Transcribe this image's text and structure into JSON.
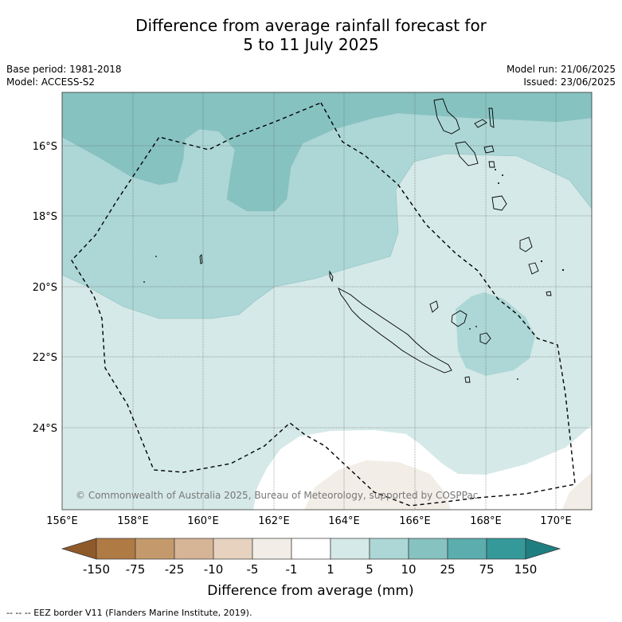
{
  "header": {
    "title_line1": "Difference from average rainfall forecast for",
    "title_line2": "5 to 11 July 2025",
    "base_period": "Base period: 1981-2018",
    "model": "Model: ACCESS-S2",
    "model_run": "Model run: 21/06/2025",
    "issued": "Issued: 23/06/2025"
  },
  "map": {
    "copyright": "© Commonwealth of Australia 2025, Bureau of Meteorology, supported by COSPPac",
    "lat_labels": [
      "16°S",
      "18°S",
      "20°S",
      "22°S",
      "24°S"
    ],
    "lon_labels": [
      "156°E",
      "158°E",
      "160°E",
      "162°E",
      "164°E",
      "166°E",
      "168°E",
      "170°E"
    ],
    "gridlines": true
  },
  "colorbar": {
    "title": "Difference from average (mm)",
    "tick_labels": [
      "-150",
      "-75",
      "-25",
      "-10",
      "-5",
      "-1",
      "1",
      "5",
      "10",
      "25",
      "75",
      "150"
    ],
    "colors": [
      "#8f5a2a",
      "#b07a45",
      "#c49a6c",
      "#d6b596",
      "#e6d2bf",
      "#f2ede6",
      "#ffffff",
      "#d5e9e8",
      "#acd7d6",
      "#86c2c0",
      "#5cadad",
      "#35999a",
      "#1f7f80"
    ]
  },
  "footer": {
    "eez_note": "--  --  -- EEZ border V11 (Flanders Marine Institute, 2019)."
  }
}
